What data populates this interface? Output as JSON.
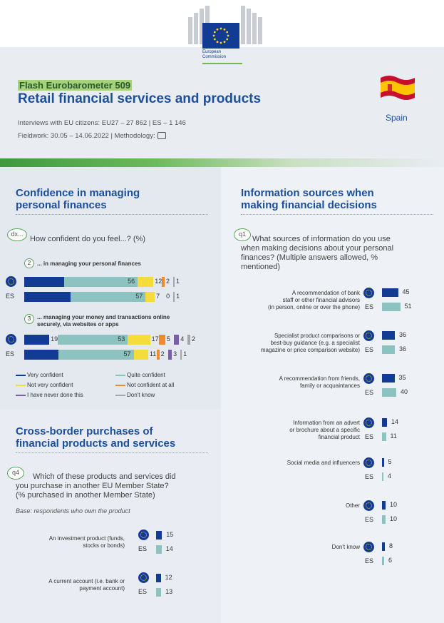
{
  "header": {
    "org_name": "European Commission",
    "series": "Flash Eurobarometer 509",
    "title": "Retail financial services and products",
    "meta_interviews": "Interviews with EU citizens: EU27 – 27 862 | ES – 1 146",
    "meta_fieldwork": "Fieldwork: 30.05 – 14.06.2022 | Methodology:",
    "country": "Spain"
  },
  "colors": {
    "very_confident": "#123c93",
    "quite_confident": "#8cc2c0",
    "not_very_confident": "#f4dd3a",
    "not_confident_at_all": "#f08a2c",
    "never_done": "#7b5ea7",
    "dont_know": "#a6a6a6",
    "eu_bar": "#123c93",
    "es_bar": "#8cc2c0"
  },
  "confidence": {
    "title_line1": "Confidence in managing",
    "title_line2": "personal finances",
    "q_id": "dx...",
    "question": "How confident do you feel...? (%)",
    "groups": [
      {
        "num": "2",
        "label": "... in managing your personal finances",
        "rows": [
          {
            "row": "EU",
            "values": [
              30,
              56,
              12,
              2,
              1
            ]
          },
          {
            "row": "ES",
            "values": [
              35,
              57,
              7,
              0,
              1
            ]
          }
        ],
        "series_keys": [
          "very_confident",
          "quite_confident",
          "not_very_confident",
          "not_confident_at_all",
          "dont_know"
        ]
      },
      {
        "num": "3",
        "label_line1": "... managing your money and transactions online",
        "label_line2": "securely, via websites or apps",
        "rows": [
          {
            "row": "EU",
            "values": [
              19,
              53,
              17,
              5,
              4,
              2
            ]
          },
          {
            "row": "ES",
            "values": [
              26,
              57,
              11,
              2,
              3,
              1
            ]
          }
        ],
        "series_keys": [
          "very_confident",
          "quite_confident",
          "not_very_confident",
          "not_confident_at_all",
          "never_done",
          "dont_know"
        ]
      }
    ],
    "es_label": "ES",
    "legend": [
      {
        "key": "very_confident",
        "label": "Very confident"
      },
      {
        "key": "quite_confident",
        "label": "Quite confident"
      },
      {
        "key": "not_very_confident",
        "label": "Not very confident"
      },
      {
        "key": "not_confident_at_all",
        "label": "Not confident at all"
      },
      {
        "key": "never_done",
        "label": "I have never done this"
      },
      {
        "key": "dont_know",
        "label": "Don't know"
      }
    ]
  },
  "cross_border": {
    "title_line1": "Cross-border purchases of",
    "title_line2": "financial products and services",
    "q_id": "q4",
    "question_line1": "Which of these products and services did",
    "question_line2": "you purchase in another EU Member State?",
    "question_line3": "(% purchased in another Member State)",
    "base": "Base: respondents who own the product",
    "items": [
      {
        "label_line1": "An investment product (funds,",
        "label_line2": "stocks or bonds)",
        "eu": 15,
        "es": 14
      },
      {
        "label_line1": "A current account (i.e. bank or",
        "label_line2": "payment account)",
        "eu": 12,
        "es": 13
      }
    ]
  },
  "info_sources": {
    "title_line1": "Information sources when",
    "title_line2": "making financial decisions",
    "q_id": "q1",
    "question_line1": "What sources of information do you use",
    "question_line2": "when making decisions about your personal",
    "question_line3": "finances? (Multiple answers allowed, %",
    "question_line4": "mentioned)",
    "items": [
      {
        "lines": [
          "A recommendation of bank",
          "staff or other financial advisors",
          "(in person, online or over the phone)"
        ],
        "eu": 45,
        "es": 51
      },
      {
        "lines": [
          "Specialist product comparisons or",
          "best-buy guidance (e.g. a specialist",
          "magazine or price comparison website)"
        ],
        "eu": 36,
        "es": 36
      },
      {
        "lines": [
          "A recommendation from friends,",
          "family or acquaintances"
        ],
        "eu": 35,
        "es": 40
      },
      {
        "lines": [
          "Information from an advert",
          "or brochure about a specific",
          "financial product"
        ],
        "eu": 14,
        "es": 11
      },
      {
        "lines": [
          "Social media and influencers"
        ],
        "eu": 5,
        "es": 4
      },
      {
        "lines": [
          "Other"
        ],
        "eu": 10,
        "es": 10
      },
      {
        "lines": [
          "Don't know"
        ],
        "eu": 8,
        "es": 6
      }
    ]
  }
}
